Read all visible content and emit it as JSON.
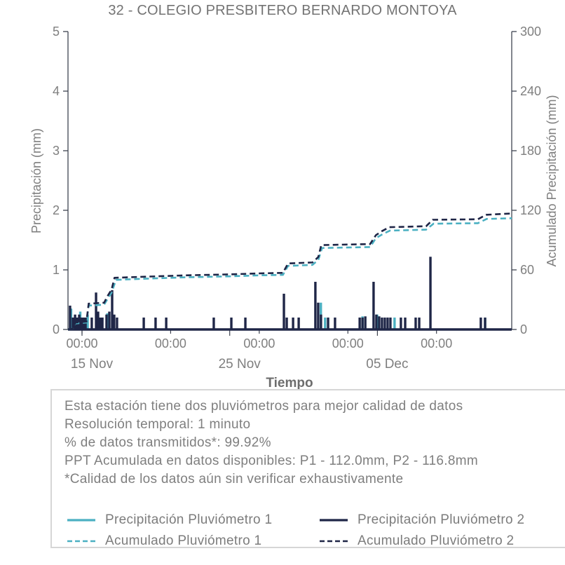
{
  "title": "32 - COLEGIO PRESBITERO BERNARDO MONTOYA",
  "axes": {
    "x_label": "Tiempo",
    "y_left_label": "Precipitación (mm)",
    "y_right_label": "Acumulado Precipitación (mm)",
    "y_left_ticks": [
      "0",
      "1",
      "2",
      "3",
      "4",
      "5"
    ],
    "y_right_ticks": [
      "0",
      "60",
      "120",
      "180",
      "240",
      "300"
    ],
    "x_time_ticks": [
      {
        "label": "00:00",
        "day": 0
      },
      {
        "label": "00:00",
        "day": 6
      },
      {
        "label": "00:00",
        "day": 12
      },
      {
        "label": "00:00",
        "day": 18
      },
      {
        "label": "00:00",
        "day": 24
      }
    ],
    "x_date_ticks": [
      {
        "label": "15 Nov",
        "day": 0
      },
      {
        "label": "25 Nov",
        "day": 10
      },
      {
        "label": "05 Dec",
        "day": 20
      }
    ]
  },
  "info_box": {
    "lines": [
      "Esta estación tiene dos pluviómetros para mejor calidad de datos",
      "Resolución temporal: 1 minuto",
      "% de datos transmitidos*: 99.92%",
      "PPT Acumulada en datos disponibles: P1 - 112.0mm, P2 - 116.8mm",
      "*Calidad de los datos aún sin verificar exhaustivamente"
    ]
  },
  "legend": [
    {
      "label": "Precipitación Pluviómetro 1",
      "color_key": "p1",
      "dash": false
    },
    {
      "label": "Precipitación Pluviómetro 2",
      "color_key": "p2",
      "dash": false
    },
    {
      "label": "Acumulado Pluviómetro 1",
      "color_key": "p1",
      "dash": true
    },
    {
      "label": "Acumulado Pluviómetro 2",
      "color_key": "p2",
      "dash": true
    }
  ],
  "colors": {
    "p1": "#4bb0c2",
    "p2": "#1f2647",
    "text": "#7f7f7f",
    "spine": "#3f4450",
    "box_border": "#d6d6d6"
  },
  "chart_data": {
    "type": "bar+line",
    "x_unit": "days since 15 Nov 00:00",
    "x_range_days": [
      -0.95,
      29.1
    ],
    "y_left_range": [
      0,
      5
    ],
    "y_right_range": [
      0,
      300
    ],
    "grid": false,
    "legend_position": "bottom box",
    "title": "32 - COLEGIO PRESBITERO BERNARDO MONTOYA",
    "xlabel": "Tiempo",
    "ylabel_left": "Precipitación (mm)",
    "ylabel_right": "Acumulado Precipitación (mm)",
    "series": [
      {
        "name": "Precipitación Pluviómetro 1",
        "type": "bar",
        "axis": "left",
        "color_key": "p1",
        "points": [
          [
            -0.81,
            0.35
          ],
          [
            -0.19,
            0.3
          ],
          [
            0.31,
            0.25
          ],
          [
            1.64,
            0.27
          ],
          [
            16.1,
            0.45
          ],
          [
            16.39,
            0.2
          ],
          [
            18.92,
            0.22
          ],
          [
            19.91,
            0.25
          ],
          [
            21.09,
            0.2
          ],
          [
            27.22,
            0.2
          ]
        ]
      },
      {
        "name": "Precipitación Pluviómetro 2",
        "type": "bar",
        "axis": "left",
        "color_key": "p2",
        "points": [
          [
            -0.81,
            0.4
          ],
          [
            -0.62,
            0.2
          ],
          [
            -0.47,
            0.25
          ],
          [
            -0.33,
            0.2
          ],
          [
            -0.19,
            0.25
          ],
          [
            -0.05,
            0.2
          ],
          [
            0.09,
            0.2
          ],
          [
            0.24,
            0.2
          ],
          [
            0.66,
            0.2
          ],
          [
            0.95,
            0.62
          ],
          [
            1.09,
            0.3
          ],
          [
            1.23,
            0.2
          ],
          [
            1.38,
            0.2
          ],
          [
            1.66,
            0.25
          ],
          [
            1.85,
            0.3
          ],
          [
            2.04,
            0.66
          ],
          [
            2.18,
            0.25
          ],
          [
            2.37,
            0.2
          ],
          [
            4.18,
            0.2
          ],
          [
            4.98,
            0.2
          ],
          [
            5.7,
            0.2
          ],
          [
            8.92,
            0.2
          ],
          [
            10.11,
            0.2
          ],
          [
            11.06,
            0.2
          ],
          [
            13.67,
            0.6
          ],
          [
            13.86,
            0.2
          ],
          [
            14.29,
            0.2
          ],
          [
            14.67,
            0.2
          ],
          [
            15.8,
            0.8
          ],
          [
            15.99,
            0.45
          ],
          [
            16.18,
            0.25
          ],
          [
            16.66,
            0.2
          ],
          [
            17.13,
            0.2
          ],
          [
            18.8,
            0.2
          ],
          [
            18.99,
            0.2
          ],
          [
            19.18,
            0.22
          ],
          [
            19.74,
            0.8
          ],
          [
            19.93,
            0.25
          ],
          [
            20.12,
            0.22
          ],
          [
            20.31,
            0.2
          ],
          [
            20.5,
            0.2
          ],
          [
            20.69,
            0.2
          ],
          [
            20.88,
            0.2
          ],
          [
            21.59,
            0.2
          ],
          [
            21.88,
            0.2
          ],
          [
            22.59,
            0.2
          ],
          [
            22.83,
            0.2
          ],
          [
            23.59,
            1.22
          ],
          [
            27.0,
            0.2
          ],
          [
            27.29,
            0.2
          ]
        ]
      },
      {
        "name": "Acumulado Pluviómetro 1",
        "type": "line",
        "style": "dashed",
        "axis": "right",
        "color_key": "p1",
        "points": [
          [
            -0.95,
            0
          ],
          [
            -0.6,
            1
          ],
          [
            -0.45,
            6
          ],
          [
            0.3,
            7
          ],
          [
            0.45,
            24
          ],
          [
            1.5,
            25
          ],
          [
            1.7,
            30
          ],
          [
            2.0,
            37
          ],
          [
            2.3,
            50
          ],
          [
            4.0,
            51
          ],
          [
            7.0,
            52.5
          ],
          [
            10.0,
            53.5
          ],
          [
            12.0,
            54.5
          ],
          [
            13.6,
            55
          ],
          [
            13.95,
            64
          ],
          [
            15.6,
            65
          ],
          [
            16.0,
            70
          ],
          [
            16.25,
            82
          ],
          [
            19.5,
            83
          ],
          [
            19.9,
            92
          ],
          [
            20.35,
            96
          ],
          [
            20.85,
            99.5
          ],
          [
            23.3,
            100.5
          ],
          [
            23.8,
            106.5
          ],
          [
            26.8,
            107
          ],
          [
            27.4,
            111.3
          ],
          [
            29.1,
            112.0
          ]
        ]
      },
      {
        "name": "Acumulado Pluviómetro 2",
        "type": "line",
        "style": "dashed",
        "axis": "right",
        "color_key": "p2",
        "points": [
          [
            -0.95,
            0
          ],
          [
            -0.6,
            1
          ],
          [
            -0.45,
            7
          ],
          [
            0.3,
            8
          ],
          [
            0.45,
            26
          ],
          [
            1.5,
            27
          ],
          [
            1.7,
            33
          ],
          [
            2.0,
            40
          ],
          [
            2.2,
            52
          ],
          [
            4.0,
            53
          ],
          [
            7.0,
            54.5
          ],
          [
            10.0,
            55.5
          ],
          [
            12.0,
            56.5
          ],
          [
            13.6,
            57
          ],
          [
            13.95,
            66.5
          ],
          [
            15.6,
            67.5
          ],
          [
            16.0,
            73
          ],
          [
            16.2,
            85
          ],
          [
            19.5,
            86
          ],
          [
            19.9,
            95
          ],
          [
            20.3,
            99
          ],
          [
            20.8,
            103
          ],
          [
            23.3,
            104
          ],
          [
            23.75,
            110.5
          ],
          [
            26.8,
            111
          ],
          [
            27.35,
            115.5
          ],
          [
            29.1,
            116.8
          ]
        ]
      }
    ]
  }
}
